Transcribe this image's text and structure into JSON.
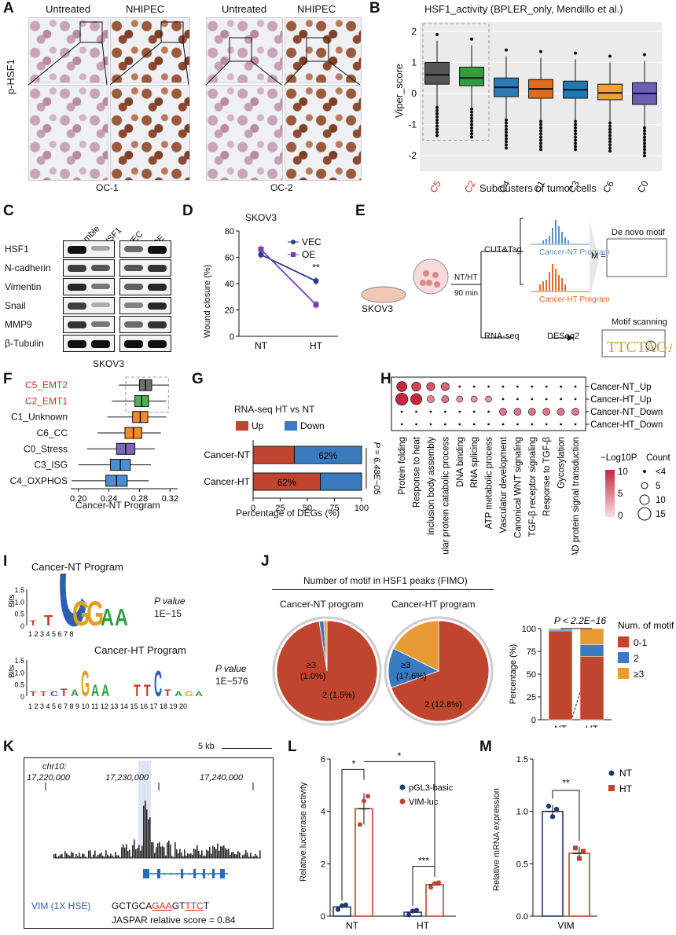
{
  "panels": {
    "A": {
      "letter": "A",
      "title_untreated": "Untreated",
      "title_nhipec": "NHIPEC",
      "ylabel": "p-HSF1",
      "oc1": "OC-1",
      "oc2": "OC-2"
    },
    "B": {
      "letter": "B",
      "title": "HSF1_activity (BPLER_only, Mendillo et al.)",
      "ylabel": "Viper_score",
      "xlabel": "Subclusters of tumor cells",
      "categories": [
        "C5",
        "C2",
        "C4",
        "C1",
        "C3",
        "C6",
        "C0"
      ],
      "yticks": [
        "2",
        "1",
        "0",
        "-1",
        "-2"
      ],
      "colors": [
        "#555555",
        "#2e9e3f",
        "#2f7ab5",
        "#e06c1b",
        "#1f77b4",
        "#f0a236",
        "#6a5fb0"
      ]
    },
    "C": {
      "letter": "C",
      "lanes": [
        "Scramble",
        "sg-HSF1",
        "VEC",
        "OE"
      ],
      "rows": [
        "HSF1",
        "N-cadherin",
        "Vimentin",
        "Snail",
        "MMP9",
        "β-Tubulin"
      ],
      "cell": "SKOV3"
    },
    "D": {
      "letter": "D",
      "title": "SKOV3",
      "ylabel": "Wound closure (%)",
      "xticks": [
        "NT",
        "HT"
      ],
      "yticks": [
        "80",
        "60",
        "40",
        "20",
        "0"
      ],
      "legend_vec": "VEC",
      "legend_oe": "OE",
      "sig": "**"
    },
    "E": {
      "letter": "E",
      "skov3": "SKOV3",
      "ntht": "NT/HT",
      "min": "90 min",
      "cut": "CUT&Tag",
      "rna": "RNA-seq",
      "deseq": "DESeq2",
      "nt_prog": "Cancer-NT Program",
      "ht_prog": "Cancer-HT Program",
      "denovo": "De novo motif",
      "scan": "Motif scanning",
      "matrix": "M ="
    },
    "F": {
      "letter": "F",
      "xlabel": "Cancer-NT Program",
      "xticks": [
        "0.20",
        "0.24",
        "0.28",
        "0.32"
      ],
      "categories": [
        "C5_EMT2",
        "C2_EMT1",
        "C1_Unknown",
        "C6_CC",
        "C0_Stress",
        "C3_ISG",
        "C4_OXPHOS"
      ]
    },
    "G": {
      "letter": "G",
      "title": "RNA-seq HT vs NT",
      "legend_up": "Up",
      "legend_down": "Down",
      "rows": [
        "Cancer-NT",
        "Cancer-HT"
      ],
      "nt_label": "62%",
      "ht_label": "62%",
      "pval": "P = 6.48E−05",
      "xlabel": "Percentage  of DEGs (%)",
      "xticks": [
        "0",
        "25",
        "50",
        "75",
        "100"
      ]
    },
    "H": {
      "letter": "H",
      "rows": [
        "Cancer-NT_Up",
        "Cancer-HT_Up",
        "Cancer-NT_Down",
        "Cancer-HT_Down"
      ],
      "terms": [
        "Protein folding",
        "Response to heat",
        "Inclusion body assembly",
        "Cellular protein catabolic process",
        "DNA binding",
        "RNA splicing",
        "ATP metabolic process",
        "Vasculatur development",
        "Canonical WNT signaling",
        "TGF-β receptor signaling",
        "Response to TGF-β",
        "Gycosylation",
        "SMAD protein signal transduction"
      ],
      "legend_title": "−Log10P",
      "legend_count": "Count",
      "legend_ticks": [
        "10",
        "5",
        "0"
      ],
      "count_ticks": [
        "<4",
        "5",
        "10",
        "15"
      ]
    },
    "I": {
      "letter": "I",
      "nt_title": "Cancer-NT Program",
      "ht_title": "Cancer-HT Program",
      "bits": "Bits",
      "pv": "P value",
      "nt_p": "1E−15",
      "ht_p": "1E−576",
      "nt_x": "1  2  3  4  5  6  7  8",
      "ht_x": "1  2  3  4  5  6  7  8  9 10 11 12 13 14 15 16 17 18 19 20",
      "nt_seq": "TTCGGAA",
      "ht_seq1": "TTCTAGAA",
      "ht_seq2": "TTCTAGA",
      "yt": [
        "1.5",
        "1.0",
        "0.5",
        "0"
      ]
    },
    "J": {
      "letter": "J",
      "title": "Number of motif in HSF1 peaks (FIMO)",
      "nt_title": "Cancer-NT program",
      "ht_title": "Cancer-HT program",
      "nt_a": "≥3",
      "nt_a2": "(1.0%)",
      "nt_b": "2 (1.5%)",
      "ht_a": "≥3",
      "ht_a2": "(17.6%)",
      "ht_b": "2 (12.8%)",
      "pval": "P < 2.2E−16",
      "ylabel": "Percentage (%)",
      "legend_title": "Num. of motif",
      "legend": [
        "0-1",
        "2",
        "≥3"
      ],
      "xticks": [
        "NT",
        "HT"
      ],
      "yticks": [
        "100",
        "75",
        "50",
        "25",
        "0"
      ]
    },
    "K": {
      "letter": "K",
      "scale": "5 kb",
      "chr": "chr10:",
      "c1": "17,220,000",
      "c2": "17,230,000",
      "c3": "17,240,000",
      "gene": "VIM (1X HSE)",
      "seq_a": "GCTGCA",
      "seq_b": "GAA",
      "seq_c": "GT",
      "seq_d": "TTC",
      "seq_e": "T",
      "jaspar": "JASPAR relative score = 0.84"
    },
    "L": {
      "letter": "L",
      "ylabel": "Relative luciferase activity",
      "xticks": [
        "NT",
        "HT"
      ],
      "yticks": [
        "6",
        "4",
        "2",
        "0"
      ],
      "legend1": "pGL3-basic",
      "legend2": "VIM-luc",
      "s1": "*",
      "s2": "*",
      "s3": "***"
    },
    "M": {
      "letter": "M",
      "ylabel": "Relative mRNA expression",
      "xtick": "VIM",
      "yticks": [
        "1.5",
        "1.0",
        "0.5",
        "0.0"
      ],
      "legend1": "NT",
      "legend2": "HT",
      "sig": "**"
    }
  },
  "chart_data": [
    {
      "type": "box",
      "title": "HSF1_activity (BPLER_only, Mendillo et al.)",
      "xlabel": "Subclusters of tumor cells",
      "ylabel": "Viper_score",
      "categories": [
        "C5",
        "C2",
        "C4",
        "C1",
        "C3",
        "C6",
        "C0"
      ],
      "medians": [
        0.6,
        0.5,
        0.2,
        0.15,
        0.12,
        0.02,
        0.0
      ],
      "q1": [
        0.3,
        0.25,
        -0.1,
        -0.15,
        -0.15,
        -0.2,
        -0.35
      ],
      "q3": [
        1.0,
        0.85,
        0.5,
        0.45,
        0.4,
        0.3,
        0.35
      ],
      "ylim": [
        -2.5,
        2.3
      ]
    },
    {
      "type": "line",
      "title": "SKOV3",
      "ylabel": "Wound closure (%)",
      "categories": [
        "NT",
        "HT"
      ],
      "series": [
        {
          "name": "VEC",
          "values": [
            62,
            42
          ]
        },
        {
          "name": "OE",
          "values": [
            66,
            24
          ]
        }
      ],
      "ylim": [
        0,
        80
      ]
    },
    {
      "type": "box",
      "xlabel": "Cancer-NT Program",
      "categories": [
        "C5_EMT2",
        "C2_EMT1",
        "C1_Unknown",
        "C6_CC",
        "C0_Stress",
        "C3_ISG",
        "C4_OXPHOS"
      ],
      "medians": [
        0.288,
        0.283,
        0.281,
        0.272,
        0.262,
        0.255,
        0.25
      ],
      "xlim": [
        0.19,
        0.33
      ]
    },
    {
      "type": "bar",
      "title": "RNA-seq HT vs NT",
      "categories": [
        "Cancer-NT",
        "Cancer-HT"
      ],
      "series": [
        {
          "name": "Up",
          "values": [
            38,
            62
          ]
        },
        {
          "name": "Down",
          "values": [
            62,
            38
          ]
        }
      ],
      "xlabel": "Percentage  of DEGs (%)",
      "xlim": [
        0,
        100
      ]
    },
    {
      "type": "pie",
      "title": "Cancer-NT program",
      "labels": [
        "0-1",
        "2",
        "≥3"
      ],
      "values": [
        97.5,
        1.5,
        1.0
      ]
    },
    {
      "type": "pie",
      "title": "Cancer-HT program",
      "labels": [
        "0-1",
        "2",
        "≥3"
      ],
      "values": [
        69.6,
        12.8,
        17.6
      ]
    },
    {
      "type": "bar",
      "ylabel": "Percentage (%)",
      "categories": [
        "NT",
        "HT"
      ],
      "series": [
        {
          "name": "0-1",
          "values": [
            97.5,
            69.6
          ]
        },
        {
          "name": "2",
          "values": [
            1.5,
            12.8
          ]
        },
        {
          "name": "≥3",
          "values": [
            1.0,
            17.6
          ]
        }
      ],
      "ylim": [
        0,
        100
      ]
    },
    {
      "type": "bar",
      "ylabel": "Relative luciferase activity",
      "categories": [
        "NT",
        "HT"
      ],
      "series": [
        {
          "name": "pGL3-basic",
          "values": [
            0.35,
            0.15
          ]
        },
        {
          "name": "VIM-luc",
          "values": [
            4.1,
            1.2
          ]
        }
      ],
      "ylim": [
        0,
        6
      ]
    },
    {
      "type": "bar",
      "ylabel": "Relative mRNA expression",
      "categories": [
        "VIM"
      ],
      "series": [
        {
          "name": "NT",
          "values": [
            1.0
          ]
        },
        {
          "name": "HT",
          "values": [
            0.6
          ]
        }
      ],
      "ylim": [
        0,
        1.5
      ]
    }
  ]
}
